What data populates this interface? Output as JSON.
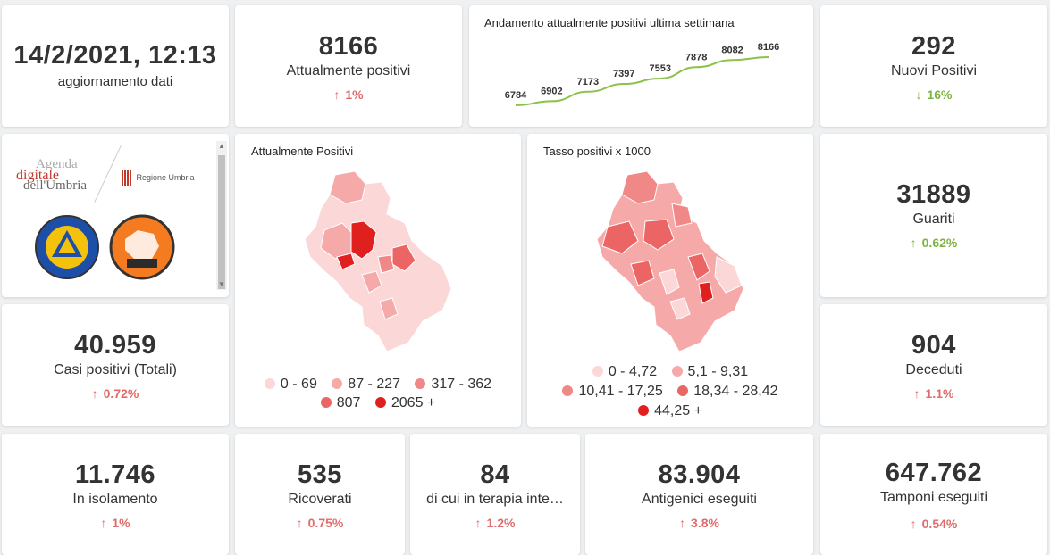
{
  "update": {
    "datetime": "14/2/2021, 12:13",
    "label": "aggiornamento dati"
  },
  "attualmente_positivi": {
    "value": "8166",
    "label": "Attualmente positivi",
    "change": "1%",
    "trend": "up"
  },
  "trend_chart": {
    "title": "Andamento attualmente positivi ultima settimana"
  },
  "chart_data": {
    "type": "line",
    "title": "Andamento attualmente positivi ultima settimana",
    "x": [
      1,
      2,
      3,
      4,
      5,
      6,
      7,
      8
    ],
    "values": [
      6784,
      6902,
      7173,
      7397,
      7553,
      7878,
      8082,
      8166
    ],
    "labels": [
      "6784",
      "6902",
      "7173",
      "7397",
      "7553",
      "7878",
      "8082",
      "8166"
    ],
    "color": "#8bc34a",
    "xlabel": "",
    "ylabel": ""
  },
  "nuovi_positivi": {
    "value": "292",
    "label": "Nuovi Positivi",
    "change": "16%",
    "trend": "down"
  },
  "logos": {
    "agenda_line1": "Agenda",
    "agenda_line2": "digitale",
    "agenda_line3": "dell'Umbria",
    "regione": "Regione Umbria"
  },
  "map1": {
    "title": "Attualmente Positivi",
    "legend": [
      {
        "label": "0 - 69",
        "color": "#fbd7d7"
      },
      {
        "label": "87 - 227",
        "color": "#f6a9a9"
      },
      {
        "label": "317 - 362",
        "color": "#f18888"
      },
      {
        "label": "807",
        "color": "#eb6565"
      },
      {
        "label": "2065 +",
        "color": "#e01f1f"
      }
    ]
  },
  "map2": {
    "title": "Tasso positivi x 1000",
    "legend": [
      {
        "label": "0 - 4,72",
        "color": "#fbd7d7"
      },
      {
        "label": "5,1 - 9,31",
        "color": "#f6a9a9"
      },
      {
        "label": "10,41 - 17,25",
        "color": "#f18888"
      },
      {
        "label": "18,34 - 28,42",
        "color": "#eb6565"
      },
      {
        "label": "44,25 +",
        "color": "#e01f1f"
      }
    ]
  },
  "guariti": {
    "value": "31889",
    "label": "Guariti",
    "change": "0.62%",
    "trend": "up-green"
  },
  "casi_totali": {
    "value": "40.959",
    "label": "Casi positivi (Totali)",
    "change": "0.72%",
    "trend": "up"
  },
  "deceduti": {
    "value": "904",
    "label": "Deceduti",
    "change": "1.1%",
    "trend": "up"
  },
  "isolamento": {
    "value": "11.746",
    "label": "In isolamento",
    "change": "1%",
    "trend": "up"
  },
  "ricoverati": {
    "value": "535",
    "label": "Ricoverati",
    "change": "0.75%",
    "trend": "up"
  },
  "terapia": {
    "value": "84",
    "label": "di cui in terapia inte…",
    "change": "1.2%",
    "trend": "up"
  },
  "antigenici": {
    "value": "83.904",
    "label": "Antigenici eseguiti",
    "change": "3.8%",
    "trend": "up"
  },
  "tamponi": {
    "value": "647.762",
    "label": "Tamponi eseguiti",
    "change": "0.54%",
    "trend": "up"
  },
  "icons": {
    "up": "arrow-up-icon",
    "down": "arrow-down-icon"
  }
}
